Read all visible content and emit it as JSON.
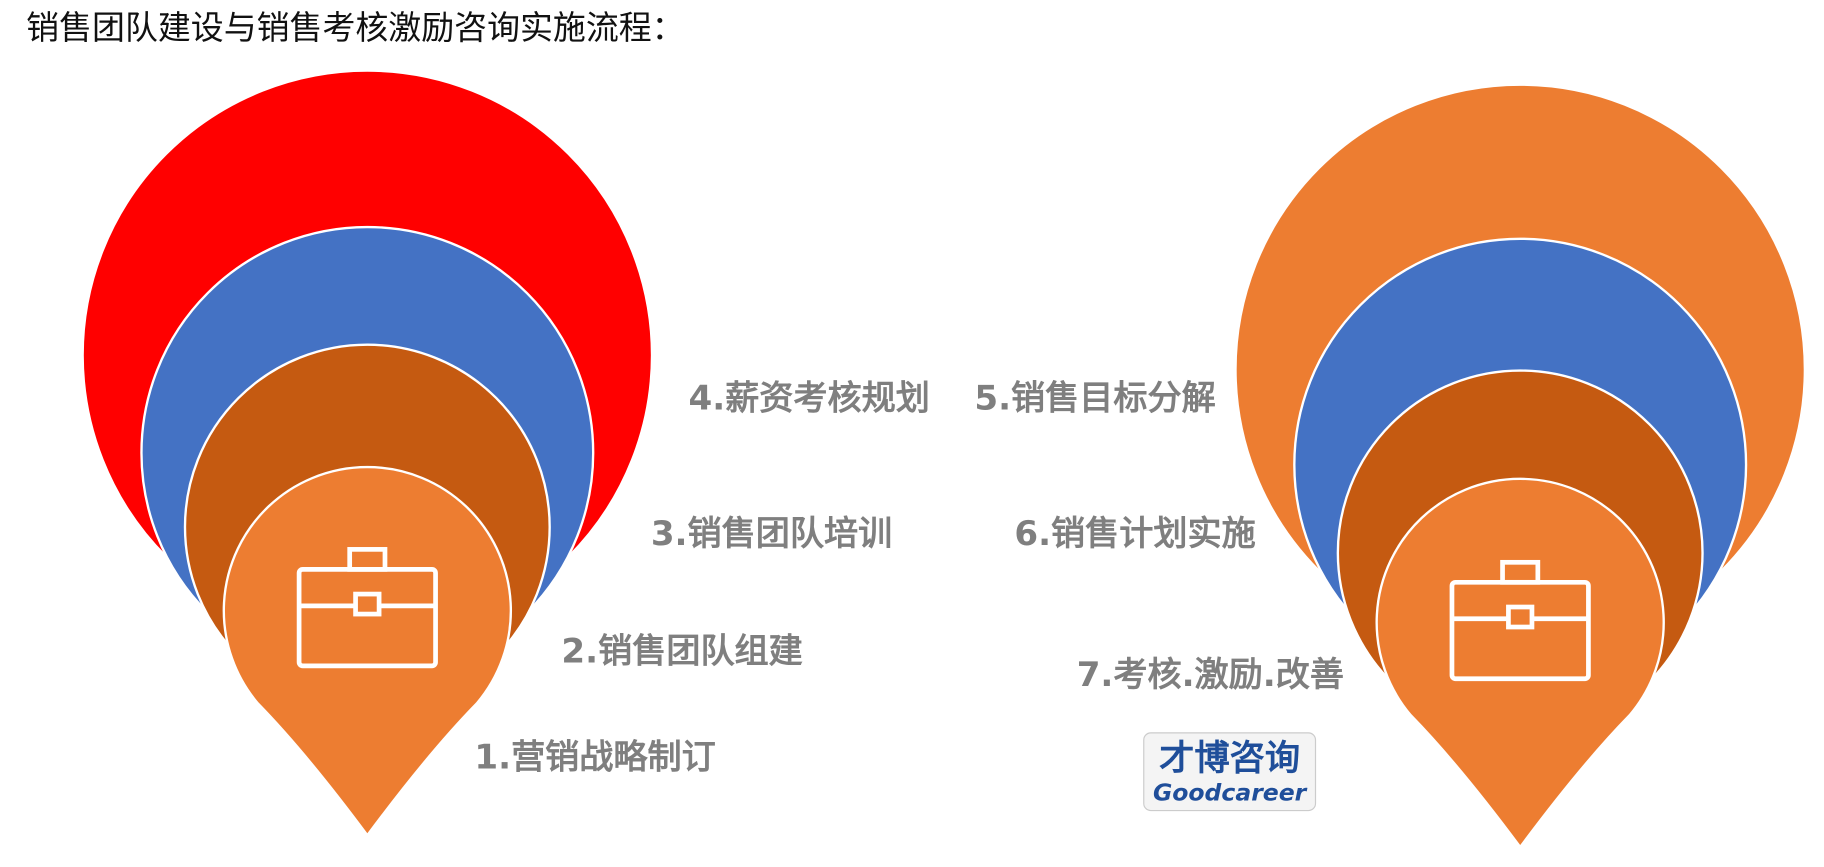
{
  "title": "销售团队建设与销售考核激励咨询实施流程：",
  "steps": [
    "1.营销战略制订",
    "2.销售团队组建",
    "3.销售团队培训",
    "4.薪资考核规划",
    "5.销售目标分解",
    "6.销售计划实施",
    "7.考核.激励.改善"
  ],
  "logo": {
    "name": "才博咨询",
    "brand": "Goodcareer"
  }
}
